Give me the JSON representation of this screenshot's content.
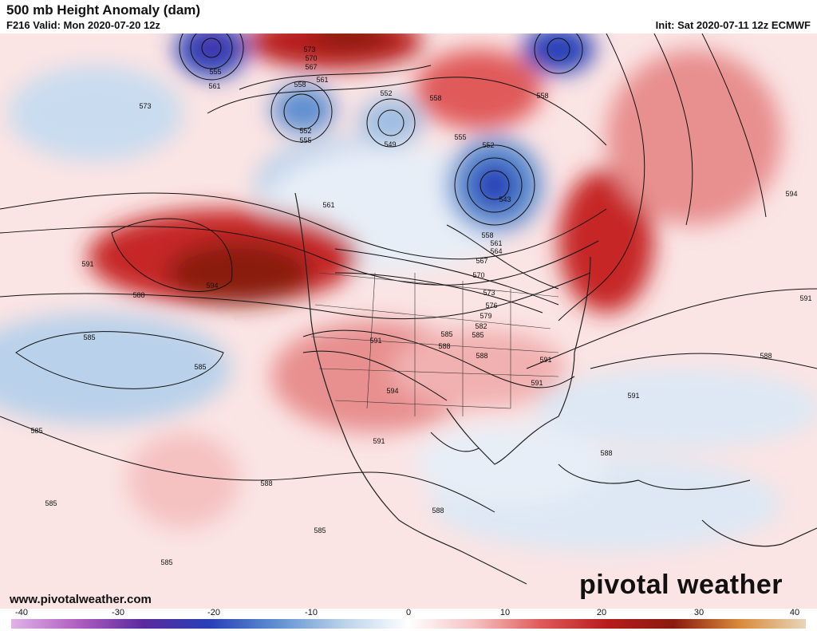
{
  "header": {
    "title": "500 mb Height Anomaly (dam)",
    "valid": "F216 Valid: Mon 2020-07-20 12z",
    "init": "Init: Sat 2020-07-11 12z ECMWF"
  },
  "footer": {
    "url": "www.pivotalweather.com",
    "brand": "pivotal weather"
  },
  "colorbar": {
    "ticks": [
      "-40",
      "-30",
      "-20",
      "-10",
      "0",
      "10",
      "20",
      "30",
      "40"
    ],
    "colors": [
      "#e0b3e8",
      "#b05fc0",
      "#5a2a9e",
      "#2840b8",
      "#5f8fd0",
      "#b9d1ea",
      "#ffffff",
      "#f5c1c1",
      "#e05a5a",
      "#b71c1c",
      "#8a1a10",
      "#d98a3a",
      "#e8d5b8"
    ]
  },
  "contours": [
    "573",
    "570",
    "567",
    "561",
    "555",
    "561",
    "558",
    "552",
    "552",
    "555",
    "549",
    "555",
    "552",
    "558",
    "558",
    "573",
    "561",
    "543",
    "558",
    "561",
    "564",
    "567",
    "570",
    "573",
    "576",
    "579",
    "582",
    "585",
    "588",
    "591",
    "594",
    "591",
    "588",
    "585",
    "585",
    "591",
    "588",
    "594",
    "591",
    "588",
    "585",
    "585",
    "591",
    "588",
    "585",
    "591",
    "594",
    "588",
    "591",
    "588",
    "585",
    "585"
  ]
}
